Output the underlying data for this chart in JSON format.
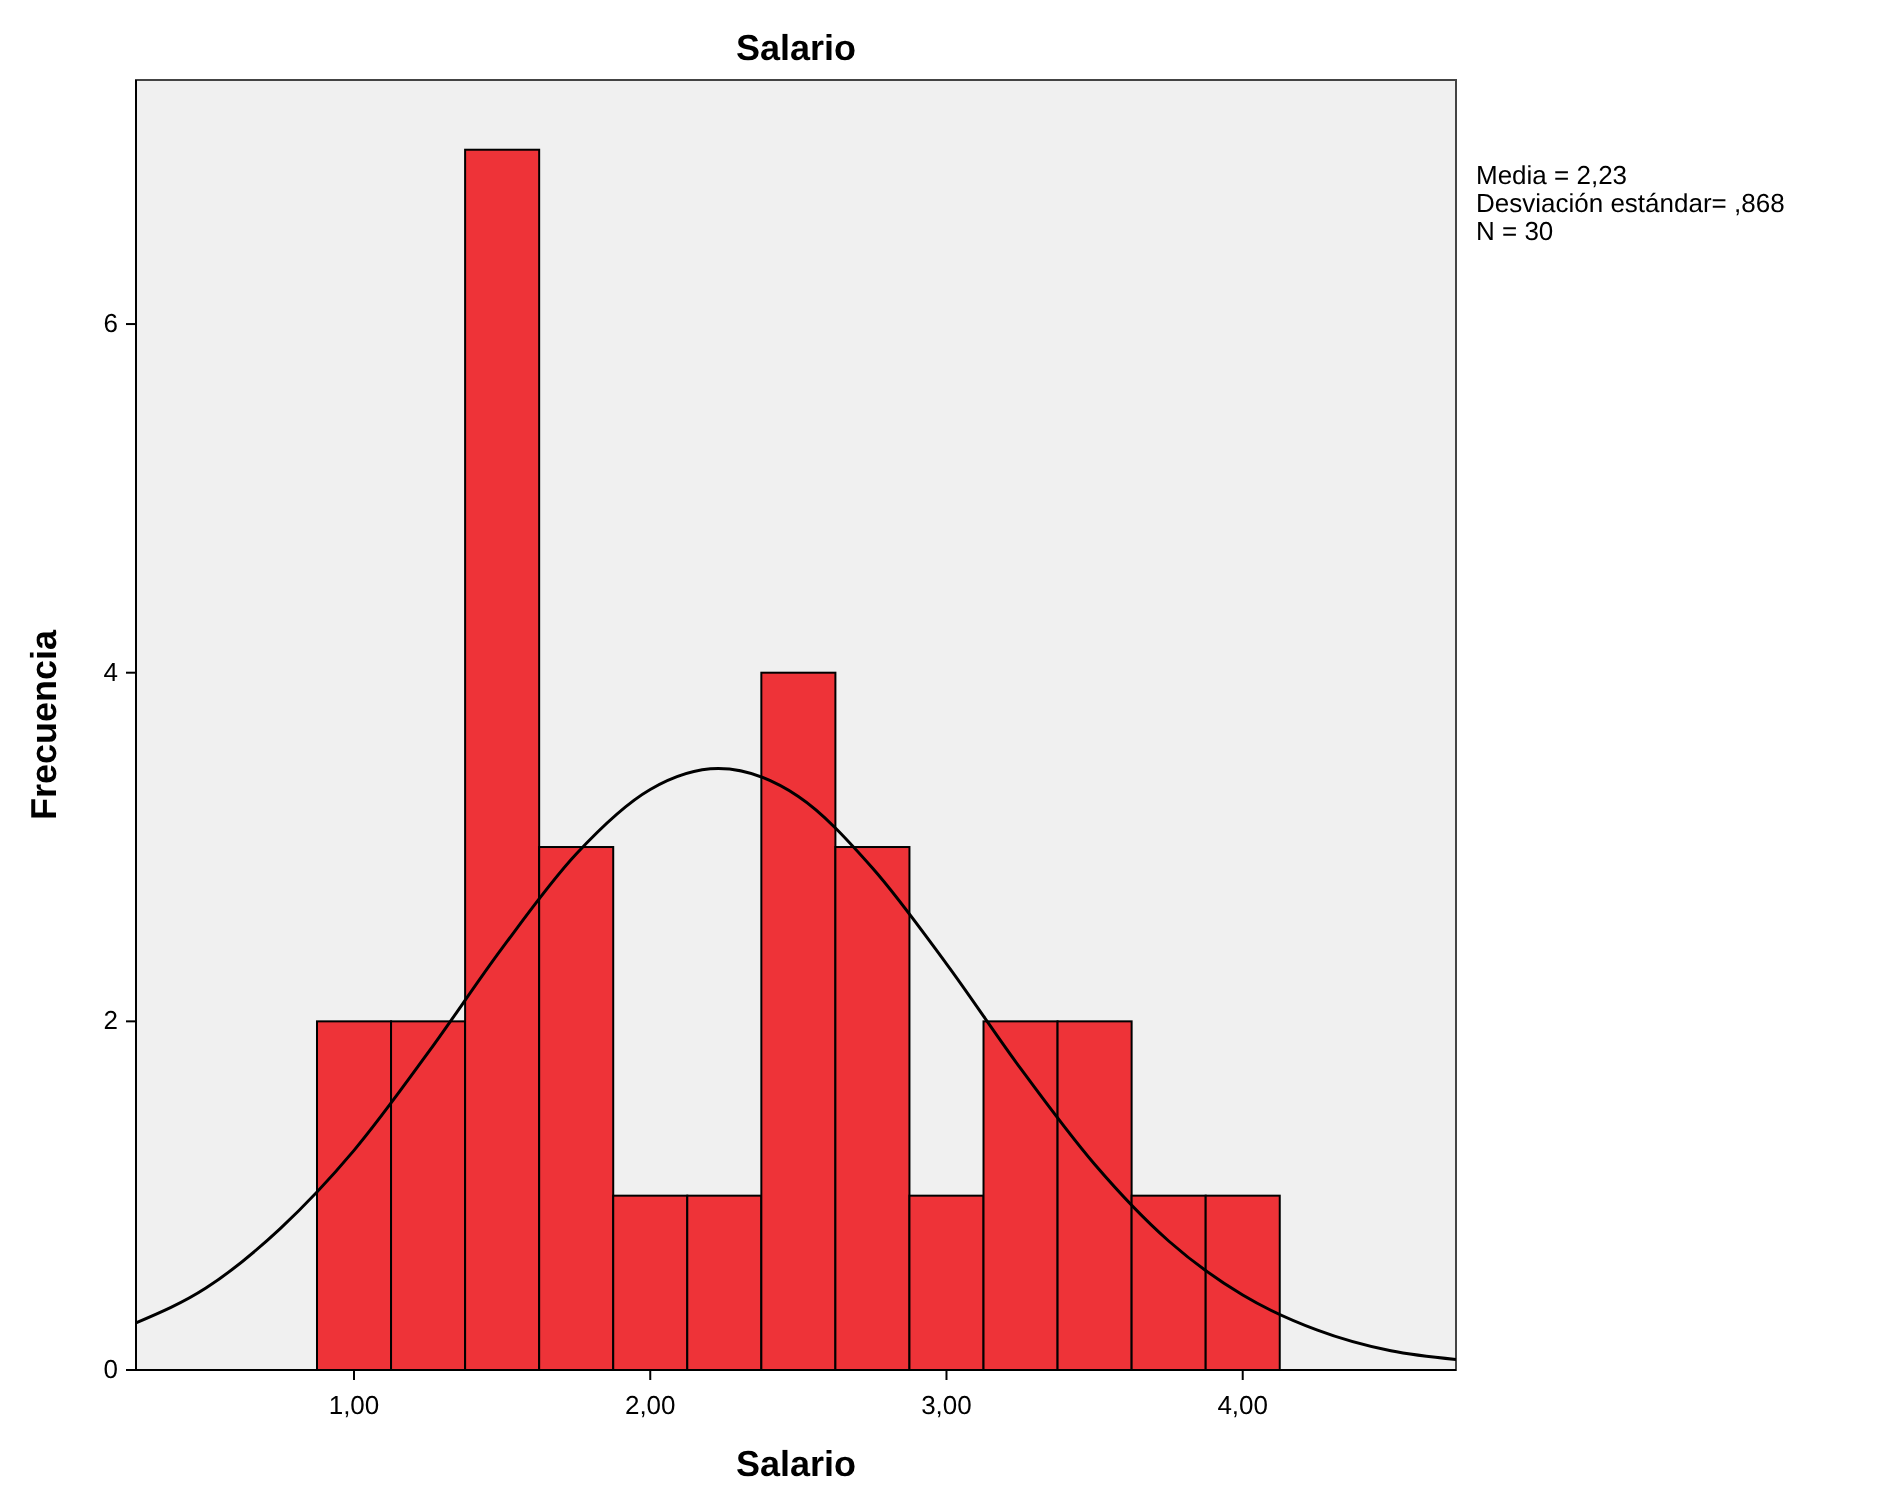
{
  "chart_data": {
    "type": "histogram",
    "title": "Salario",
    "xlabel": "Salario",
    "ylabel": "Frecuencia",
    "bins": [
      0.875,
      1.125,
      1.375,
      1.625,
      1.875,
      2.125,
      2.375,
      2.625,
      2.875,
      3.125,
      3.375,
      3.625,
      3.875,
      4.125
    ],
    "series": [
      {
        "color": "#ee3338",
        "values": [
          2,
          2,
          7,
          3,
          1,
          1,
          4,
          3,
          1,
          2,
          2,
          1,
          1
        ]
      },
      {
        "type": "line",
        "color": "#000000",
        "x": [
          0.264,
          0.5,
          0.75,
          1.0,
          1.25,
          1.5,
          1.75,
          2.0,
          2.23,
          2.5,
          2.75,
          3.0,
          3.25,
          3.5,
          3.75,
          4.0,
          4.25,
          4.5,
          4.72
        ],
        "values": [
          0.27,
          0.47,
          0.81,
          1.26,
          1.82,
          2.42,
          2.96,
          3.33,
          3.45,
          3.29,
          2.88,
          2.33,
          1.73,
          1.18,
          0.74,
          0.43,
          0.23,
          0.11,
          0.06
        ]
      }
    ],
    "xlim": [
      0.264,
      4.72
    ],
    "xticks": [
      {
        "value": 1,
        "label": "1,00"
      },
      {
        "value": 2,
        "label": "2,00"
      },
      {
        "value": 3,
        "label": "3,00"
      },
      {
        "value": 4,
        "label": "4,00"
      }
    ],
    "ylim": [
      0,
      7.4
    ],
    "yticks": [
      0,
      2,
      4,
      6
    ],
    "annotations": [
      "Media = 2,23",
      "Desviación estándar= ,868",
      "N = 30"
    ]
  }
}
